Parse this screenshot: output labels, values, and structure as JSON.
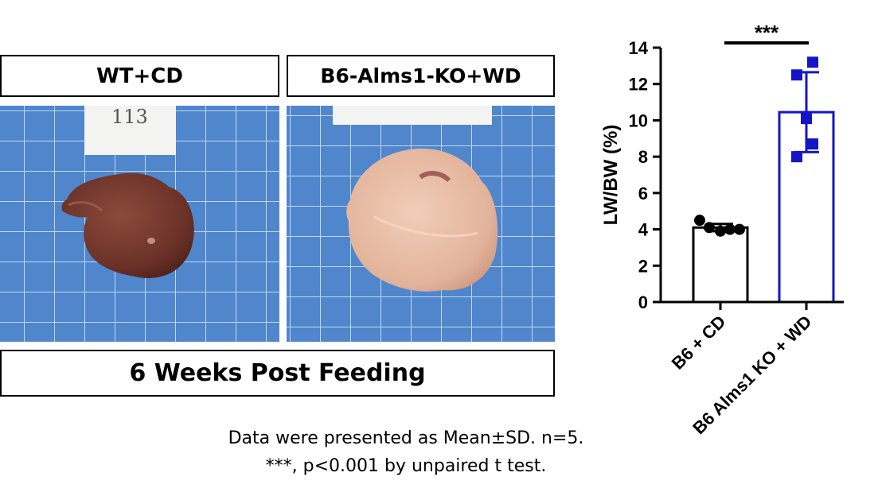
{
  "panels": {
    "left_label": "WT+CD",
    "right_label": "B6-Alms1-KO+WD",
    "bottom_label": "6 Weeks Post Feeding",
    "left_photo_note": "113"
  },
  "footnote": {
    "line1": "Data were presented as Mean±SD. n=5.",
    "line2": "***, p<0.001 by unpaired t test."
  },
  "colors": {
    "bar_b6_cd": "#000000",
    "bar_ko_wd": "#1515c8",
    "photo_background": "#4f86cc"
  },
  "chart_data": {
    "type": "bar",
    "categories": [
      "B6 + CD",
      "B6 Alms1 KO + WD"
    ],
    "means": [
      4.1,
      10.45
    ],
    "sd": [
      0.2,
      2.2
    ],
    "points": [
      [
        4.5,
        4.1,
        3.9,
        4.0,
        4.0
      ],
      [
        13.2,
        12.5,
        10.1,
        8.7,
        8.0
      ]
    ],
    "ylabel": "LW/BW (%)",
    "ylim": [
      0,
      14
    ],
    "yticks": [
      0,
      2,
      4,
      6,
      8,
      10,
      12,
      14
    ],
    "significance": "***",
    "grid": false
  }
}
